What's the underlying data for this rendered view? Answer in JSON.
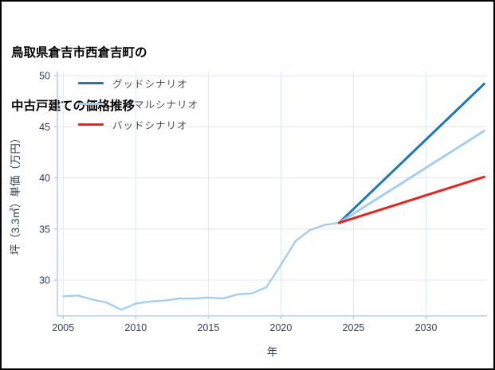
{
  "title": {
    "line1": "鳥取県倉吉市西倉吉町の",
    "line2": "中古戸建ての価格推移"
  },
  "chart_data": {
    "type": "line",
    "title": "鳥取県倉吉市西倉吉町の中古戸建ての価格推移",
    "xlabel": "年",
    "ylabel": "坪（3.3㎡）単価（万円）",
    "xlim": [
      2004.6,
      2034.2
    ],
    "ylim": [
      26.5,
      50.4
    ],
    "xticks": [
      2005,
      2010,
      2015,
      2020,
      2025,
      2030
    ],
    "yticks": [
      30,
      35,
      40,
      45,
      50
    ],
    "grid": true,
    "legend_position": "upper-left",
    "colors": {
      "grid": "#dde7f5",
      "spine": "#b3d1ee",
      "tick_label": "#333f55",
      "axis_label": "#333f55",
      "legend_text": "#4d4d4d"
    },
    "series": [
      {
        "id": "historical",
        "label": "",
        "color": "#a5cdf0",
        "width": 2.4,
        "x": [
          2005,
          2006,
          2007,
          2008,
          2009,
          2010,
          2011,
          2012,
          2013,
          2014,
          2015,
          2016,
          2017,
          2018,
          2019,
          2020,
          2021,
          2022,
          2023,
          2024
        ],
        "y": [
          28.4,
          28.5,
          28.1,
          27.8,
          27.1,
          27.7,
          27.9,
          28.0,
          28.2,
          28.2,
          28.3,
          28.2,
          28.6,
          28.7,
          29.3,
          31.5,
          33.8,
          34.9,
          35.4,
          35.6
        ]
      },
      {
        "id": "good-scenario",
        "label": "グッドシナリオ",
        "color": "#1f77b4",
        "width": 3,
        "x": [
          2024,
          2034
        ],
        "y": [
          35.6,
          49.2
        ]
      },
      {
        "id": "normal-scenario",
        "label": "ノーマルシナリオ",
        "color": "#a5cdf0",
        "width": 3,
        "x": [
          2024,
          2034
        ],
        "y": [
          35.6,
          44.6
        ]
      },
      {
        "id": "bad-scenario",
        "label": "バッドシナリオ",
        "color": "#e62420",
        "width": 3,
        "x": [
          2024,
          2034
        ],
        "y": [
          35.6,
          40.1
        ]
      }
    ]
  }
}
